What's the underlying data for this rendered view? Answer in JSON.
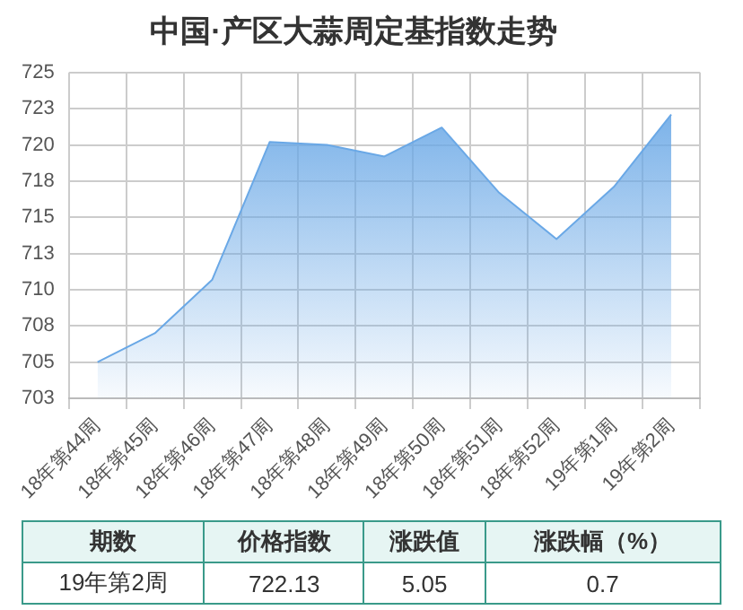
{
  "chart_data": {
    "type": "area",
    "title": "中国·产区大蒜周定基指数走势",
    "categories": [
      "18年第44周",
      "18年第45周",
      "18年第46周",
      "18年第47周",
      "18年第48周",
      "18年第49周",
      "18年第50周",
      "18年第51周",
      "18年第52周",
      "19年第1周",
      "19年第2周"
    ],
    "series": [
      {
        "color": "#6aa8e6",
        "values": [
          705.0,
          707.0,
          710.7,
          720.2,
          720.0,
          719.2,
          721.2,
          716.7,
          713.5,
          717.1,
          722.1
        ]
      }
    ],
    "ylim": [
      702.5,
      725
    ],
    "yticks": [
      {
        "value": 702.5,
        "label": "703"
      },
      705,
      {
        "value": 707.5,
        "label": "708"
      },
      710,
      {
        "value": 712.5,
        "label": "713"
      },
      715,
      {
        "value": 717.5,
        "label": "718"
      },
      720,
      {
        "value": 722.5,
        "label": "723"
      },
      725
    ],
    "grid": true,
    "legend": false,
    "annotations": [
      "期数",
      "价格指数",
      "涨跌值",
      "涨跌幅（%）",
      "19年第2周",
      "722.13",
      "5.05",
      "0.7"
    ]
  }
}
